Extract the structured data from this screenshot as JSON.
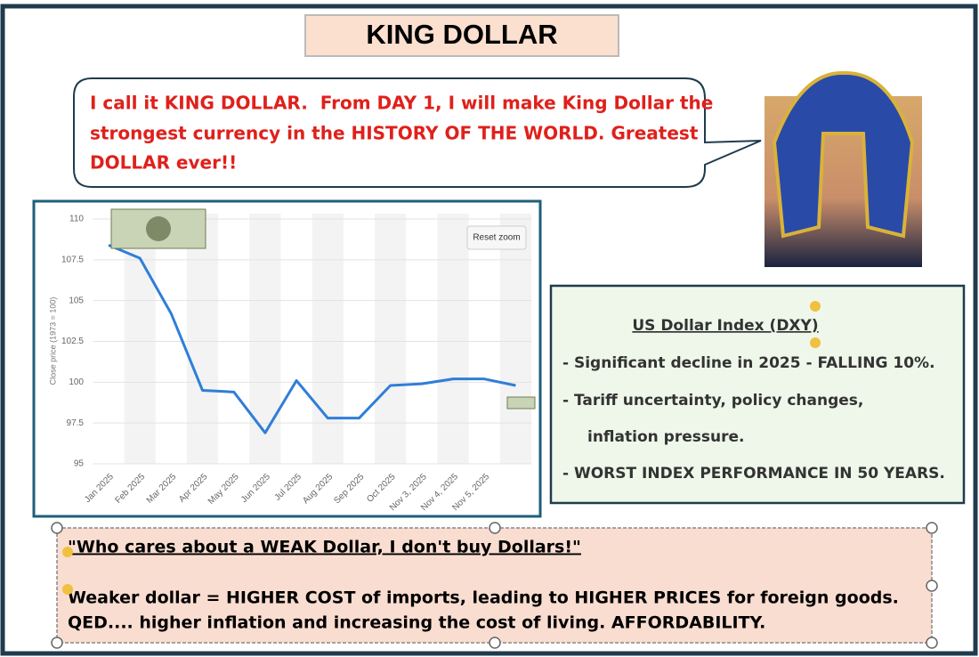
{
  "title": "KING DOLLAR",
  "speech": [
    "I call it KING DOLLAR.  From DAY 1, I will make King Dollar the",
    "strongest currency in the HISTORY OF THE WORLD. Greatest",
    "DOLLAR ever!!"
  ],
  "info_box": {
    "heading": "US Dollar Index (DXY)",
    "lines": [
      "- Significant decline in 2025 - FALLING 10%.",
      "- Tariff uncertainty, policy changes,",
      "inflation pressure.",
      "- WORST INDEX PERFORMANCE IN 50 YEARS."
    ]
  },
  "quote_box": {
    "quote": "\"Who cares about a WEAK Dollar, I don't buy Dollars!\"",
    "lines": [
      "Weaker dollar = HIGHER COST of imports, leading to HIGHER PRICES for foreign goods.",
      "QED.... higher inflation and increasing the cost of living. AFFORDABILITY."
    ]
  },
  "chart_data": {
    "type": "line",
    "y_label": "Close price (1973 = 100)",
    "button": "Reset zoom",
    "categories": [
      "Jan 2025",
      "Feb 2025",
      "Mar 2025",
      "Apr 2025",
      "May 2025",
      "Jun 2025",
      "Jul 2025",
      "Aug 2025",
      "Sep 2025",
      "Oct 2025",
      "Nov 3, 2025",
      "Nov 4, 2025",
      "Nov 5, 2025",
      null
    ],
    "series": [
      {
        "color": "#2f7ed8",
        "values": [
          108.4,
          107.6,
          104.2,
          99.5,
          99.4,
          96.9,
          100.1,
          97.8,
          97.8,
          99.8,
          99.9,
          100.2,
          100.2,
          99.8
        ]
      }
    ],
    "ylim": [
      95,
      110
    ],
    "yticks": [
      95,
      97.5,
      100,
      102.5,
      105,
      107.5,
      110
    ],
    "grid": true
  }
}
